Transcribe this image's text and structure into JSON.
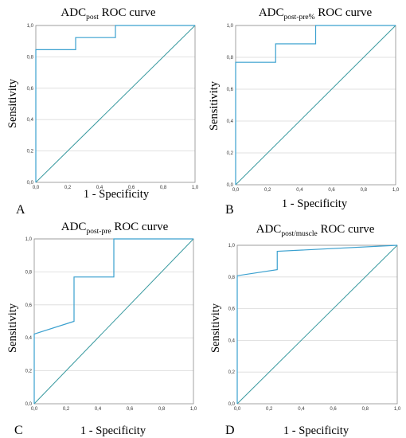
{
  "colors": {
    "roc": "#3aa0cf",
    "diagonal": "#3a9aa0",
    "grid": "#d9d9d9",
    "frame": "#8c8c8c"
  },
  "chart_data": [
    {
      "type": "line",
      "letter": "A",
      "title": "ADC",
      "title_sub": "post",
      "title_suffix": " ROC curve",
      "xlabel": "1 - Specificity",
      "ylabel": "Sensitivity",
      "xlim": [
        0,
        1
      ],
      "ylim": [
        0,
        1
      ],
      "x_ticks": [
        "0,0",
        "0,2",
        "0,4",
        "0,6",
        "0,8",
        "1,0"
      ],
      "y_ticks": [
        "0,0",
        "0,2",
        "0,4",
        "0,6",
        "0,8",
        "1,0"
      ],
      "grid": "horizontal",
      "series": [
        {
          "x": [
            0,
            0,
            0.25,
            0.25,
            0.5,
            0.5,
            1
          ],
          "y": [
            0,
            0.846,
            0.846,
            0.923,
            0.923,
            1,
            1
          ]
        },
        {
          "x": [
            0,
            1
          ],
          "y": [
            0,
            1
          ]
        }
      ]
    },
    {
      "type": "line",
      "letter": "B",
      "title": "ADC",
      "title_sub": "post-pre%",
      "title_suffix": " ROC curve",
      "xlabel": "1 - Specificity",
      "ylabel": "Sensitivity",
      "xlim": [
        0,
        1
      ],
      "ylim": [
        0,
        1
      ],
      "x_ticks": [
        "0,0",
        "0,2",
        "0,4",
        "0,6",
        "0,8",
        "1,0"
      ],
      "y_ticks": [
        "0,0",
        "0,2",
        "0,4",
        "0,6",
        "0,8",
        "1,0"
      ],
      "grid": "horizontal",
      "series": [
        {
          "x": [
            0,
            0,
            0.25,
            0.25,
            0.5,
            0.5,
            1
          ],
          "y": [
            0,
            0.769,
            0.769,
            0.885,
            0.885,
            1,
            1
          ]
        },
        {
          "x": [
            0,
            1
          ],
          "y": [
            0,
            1
          ]
        }
      ]
    },
    {
      "type": "line",
      "letter": "C",
      "title": "ADC",
      "title_sub": "post-pre",
      "title_suffix": " ROC curve",
      "xlabel": "1 - Specificity",
      "ylabel": "Sensitivity",
      "xlim": [
        0,
        1
      ],
      "ylim": [
        0,
        1
      ],
      "x_ticks": [
        "0,0",
        "0,2",
        "0,4",
        "0,6",
        "0,8",
        "1,0"
      ],
      "y_ticks": [
        "0,0",
        "0,2",
        "0,4",
        "0,6",
        "0,8",
        "1,0"
      ],
      "grid": "horizontal",
      "series": [
        {
          "x": [
            0,
            0,
            0.25,
            0.25,
            0.5,
            0.5,
            1
          ],
          "y": [
            0,
            0.423,
            0.5,
            0.769,
            0.769,
            1,
            1
          ]
        },
        {
          "x": [
            0,
            1
          ],
          "y": [
            0,
            1
          ]
        }
      ]
    },
    {
      "type": "line",
      "letter": "D",
      "title": "ADC",
      "title_sub": "post/muscle",
      "title_suffix": " ROC curve",
      "xlabel": "1 - Specificity",
      "ylabel": "Sensitivity",
      "xlim": [
        0,
        1
      ],
      "ylim": [
        0,
        1
      ],
      "x_ticks": [
        "0,0",
        "0,2",
        "0,4",
        "0,6",
        "0,8",
        "1,0"
      ],
      "y_ticks": [
        "0,0",
        "0,2",
        "0,4",
        "0,6",
        "0,8",
        "1,0"
      ],
      "grid": "horizontal",
      "series": [
        {
          "x": [
            0,
            0,
            0.25,
            0.25,
            1
          ],
          "y": [
            0,
            0.808,
            0.846,
            0.962,
            1
          ]
        },
        {
          "x": [
            0,
            1
          ],
          "y": [
            0,
            1
          ]
        }
      ]
    }
  ]
}
